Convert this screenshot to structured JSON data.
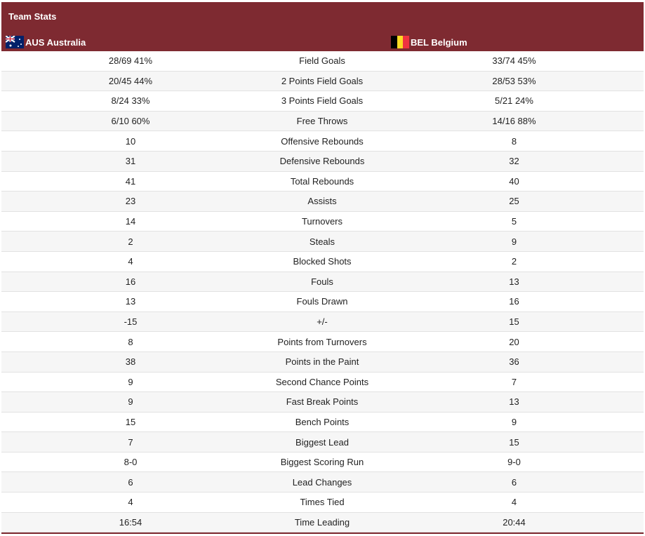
{
  "header": {
    "title": "Team Stats",
    "teams": [
      "AUS Australia",
      "BEL Belgium"
    ]
  },
  "table": {
    "rows": [
      [
        "28/69 41%",
        "Field Goals",
        "33/74 45%"
      ],
      [
        "20/45 44%",
        "2 Points Field Goals",
        "28/53 53%"
      ],
      [
        "8/24 33%",
        "3 Points Field Goals",
        "5/21 24%"
      ],
      [
        "6/10 60%",
        "Free Throws",
        "14/16 88%"
      ],
      [
        "10",
        "Offensive Rebounds",
        "8"
      ],
      [
        "31",
        "Defensive Rebounds",
        "32"
      ],
      [
        "41",
        "Total Rebounds",
        "40"
      ],
      [
        "23",
        "Assists",
        "25"
      ],
      [
        "14",
        "Turnovers",
        "5"
      ],
      [
        "2",
        "Steals",
        "9"
      ],
      [
        "4",
        "Blocked Shots",
        "2"
      ],
      [
        "16",
        "Fouls",
        "13"
      ],
      [
        "13",
        "Fouls Drawn",
        "16"
      ],
      [
        "-15",
        "+/-",
        "15"
      ],
      [
        "8",
        "Points from Turnovers",
        "20"
      ],
      [
        "38",
        "Points in the Paint",
        "36"
      ],
      [
        "9",
        "Second Chance Points",
        "7"
      ],
      [
        "9",
        "Fast Break Points",
        "13"
      ],
      [
        "15",
        "Bench Points",
        "9"
      ],
      [
        "7",
        "Biggest Lead",
        "15"
      ],
      [
        "8-0",
        "Biggest Scoring Run",
        "9-0"
      ],
      [
        "6",
        "Lead Changes",
        "6"
      ],
      [
        "4",
        "Times Tied",
        "4"
      ],
      [
        "16:54",
        "Time Leading",
        "20:44"
      ]
    ]
  }
}
